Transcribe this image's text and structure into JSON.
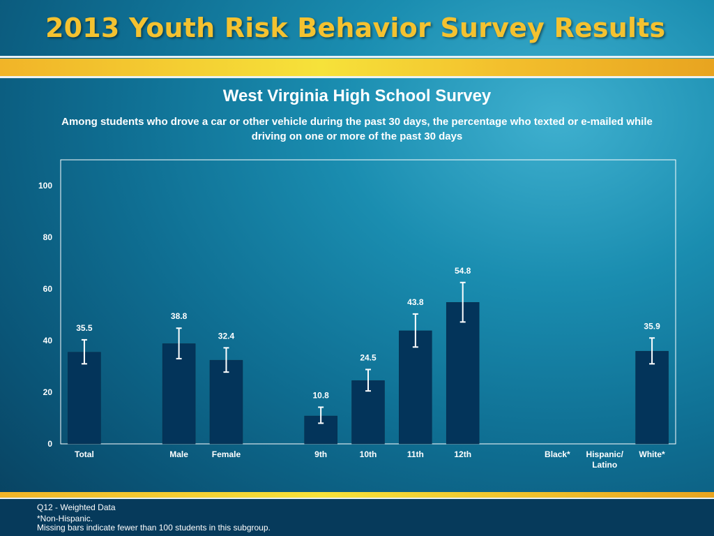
{
  "header": {
    "banner_title": "2013 Youth Risk Behavior Survey Results",
    "survey_title": "West Virginia High School Survey",
    "subtitle": "Among students who drove a car or other vehicle during the past 30 days, the percentage who texted or e-mailed while driving on one or more of the past 30 days"
  },
  "colors": {
    "bar": "#03345a",
    "banner_text": "#f4c230",
    "error_bar": "#ffffff"
  },
  "chart_data": {
    "type": "bar",
    "title": "West Virginia High School Survey",
    "xlabel": "",
    "ylabel": "",
    "ylim": [
      0,
      110
    ],
    "yticks": [
      0,
      20,
      40,
      60,
      80,
      100
    ],
    "grid": false,
    "categories": [
      "Total",
      "Male",
      "Female",
      "9th",
      "10th",
      "11th",
      "12th",
      "Black*",
      "Hispanic/ Latino",
      "White*"
    ],
    "category_lines": [
      [
        "Total"
      ],
      [
        "Male"
      ],
      [
        "Female"
      ],
      [
        "9th"
      ],
      [
        "10th"
      ],
      [
        "11th"
      ],
      [
        "12th"
      ],
      [
        "Black*"
      ],
      [
        "Hispanic/",
        "Latino"
      ],
      [
        "White*"
      ]
    ],
    "slot_index": [
      0,
      2,
      3,
      5,
      6,
      7,
      8,
      10,
      11,
      12
    ],
    "slot_count": 13,
    "values": [
      35.5,
      38.8,
      32.4,
      10.8,
      24.5,
      43.8,
      54.8,
      null,
      null,
      35.9
    ],
    "ci_low": [
      31.0,
      33.0,
      27.8,
      8.0,
      20.5,
      37.5,
      47.2,
      null,
      null,
      31.0
    ],
    "ci_high": [
      40.3,
      44.8,
      37.2,
      14.2,
      28.8,
      50.3,
      62.5,
      null,
      null,
      41.0
    ],
    "value_labels": [
      "35.5",
      "38.8",
      "32.4",
      "10.8",
      "24.5",
      "43.8",
      "54.8",
      "",
      "",
      "35.9"
    ]
  },
  "footer": {
    "question": "Q12 - Weighted Data",
    "note1": "*Non-Hispanic.",
    "note2": "Missing bars indicate fewer than 100 students in this subgroup."
  }
}
